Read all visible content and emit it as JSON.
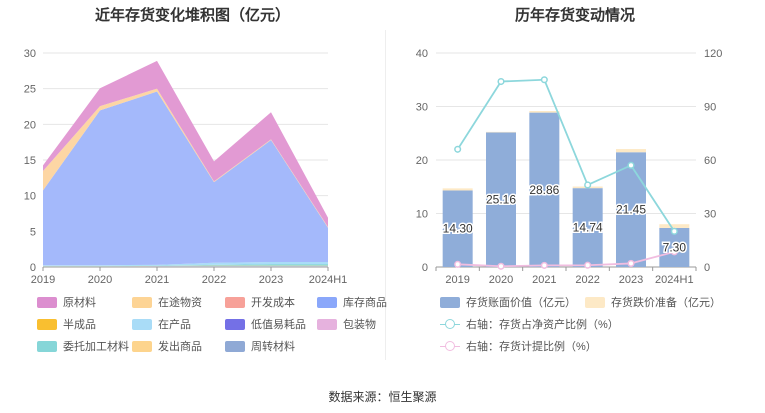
{
  "source_label": "数据来源：恒生聚源",
  "chart_data": [
    {
      "type": "area",
      "title": "近年存货变化堆积图（亿元）",
      "categories": [
        "2019",
        "2020",
        "2021",
        "2022",
        "2023",
        "2024H1"
      ],
      "ylim": [
        0,
        30
      ],
      "yticks": [
        0,
        5,
        10,
        15,
        20,
        25,
        30
      ],
      "grid": true,
      "legend_position": "bottom",
      "series": [
        {
          "name": "周转材料",
          "color": "#93acd6",
          "values": [
            0.05,
            0.05,
            0.1,
            0.1,
            0.1,
            0.1
          ]
        },
        {
          "name": "发出商品",
          "color": "#fcd48d",
          "values": [
            0.05,
            0.05,
            0.05,
            0.1,
            0.1,
            0.1
          ]
        },
        {
          "name": "委托加工材料",
          "color": "#83d6d9",
          "values": [
            0.05,
            0.05,
            0.05,
            0.1,
            0.2,
            0.2
          ]
        },
        {
          "name": "包装物",
          "color": "#e5b3dd",
          "values": [
            0,
            0,
            0,
            0,
            0,
            0
          ]
        },
        {
          "name": "低值易耗品",
          "color": "#7c7ae8",
          "values": [
            0,
            0,
            0,
            0,
            0,
            0
          ]
        },
        {
          "name": "在产品",
          "color": "#a9dcf7",
          "values": [
            0.1,
            0.1,
            0.1,
            0.3,
            0.3,
            0.3
          ]
        },
        {
          "name": "半成品",
          "color": "#fbc33e",
          "values": [
            0,
            0,
            0,
            0,
            0,
            0
          ]
        },
        {
          "name": "库存商品",
          "color": "#a4b9fb",
          "values": [
            10.5,
            21.7,
            24.3,
            11.3,
            17.1,
            4.8
          ]
        },
        {
          "name": "开发成本",
          "color": "#f9a9a2",
          "values": [
            0,
            0,
            0,
            0,
            0,
            0
          ]
        },
        {
          "name": "在途物资",
          "color": "#fdd6a4",
          "values": [
            2.7,
            0.6,
            0.4,
            0.1,
            0.1,
            0.1
          ]
        },
        {
          "name": "原材料",
          "color": "#e29ad3",
          "values": [
            0.8,
            2.5,
            3.9,
            2.8,
            3.8,
            1.3
          ]
        }
      ],
      "legend": [
        {
          "name": "原材料",
          "color": "#dc8ecf"
        },
        {
          "name": "在途物资",
          "color": "#fdd495"
        },
        {
          "name": "开发成本",
          "color": "#f7a199"
        },
        {
          "name": "库存商品",
          "color": "#8aa7fa"
        },
        {
          "name": "半成品",
          "color": "#f9bf30"
        },
        {
          "name": "在产品",
          "color": "#a9dcf7"
        },
        {
          "name": "低值易耗品",
          "color": "#7470e6"
        },
        {
          "name": "包装物",
          "color": "#e6b2de"
        },
        {
          "name": "委托加工材料",
          "color": "#86d6d8"
        },
        {
          "name": "发出商品",
          "color": "#fdd48d"
        },
        {
          "name": "周转材料",
          "color": "#8fa9d5"
        }
      ]
    },
    {
      "type": "bar",
      "title": "历年存货变动情况",
      "categories": [
        "2019",
        "2020",
        "2021",
        "2022",
        "2023",
        "2024H1"
      ],
      "ylim_left": [
        0,
        40
      ],
      "yticks_left": [
        0,
        10,
        20,
        30,
        40
      ],
      "ylim_right": [
        0,
        120
      ],
      "yticks_right": [
        0,
        30,
        60,
        90,
        120
      ],
      "grid": true,
      "legend_position": "bottom",
      "bars": [
        {
          "name": "存货账面价值（亿元）",
          "color": "#8fadd9",
          "values": [
            14.3,
            25.16,
            28.86,
            14.74,
            21.45,
            7.3
          ],
          "labels": [
            "14.30",
            "25.16",
            "28.86",
            "14.74",
            "21.45",
            "7.30"
          ]
        },
        {
          "name": "存货跌价准备（亿元）",
          "color": "#fde9c6",
          "values": [
            0.4,
            0.1,
            0.3,
            0.3,
            0.6,
            0.7
          ]
        }
      ],
      "lines": [
        {
          "name": "右轴：存货占净资产比例（%）",
          "color": "#8dd7dc",
          "axis": "right",
          "values": [
            66,
            104,
            105,
            46,
            57,
            20
          ]
        },
        {
          "name": "右轴：存货计提比例（%）",
          "color": "#f1bde0",
          "axis": "right",
          "values": [
            1.5,
            0.4,
            0.9,
            1.0,
            2.0,
            8.5
          ]
        }
      ]
    }
  ]
}
